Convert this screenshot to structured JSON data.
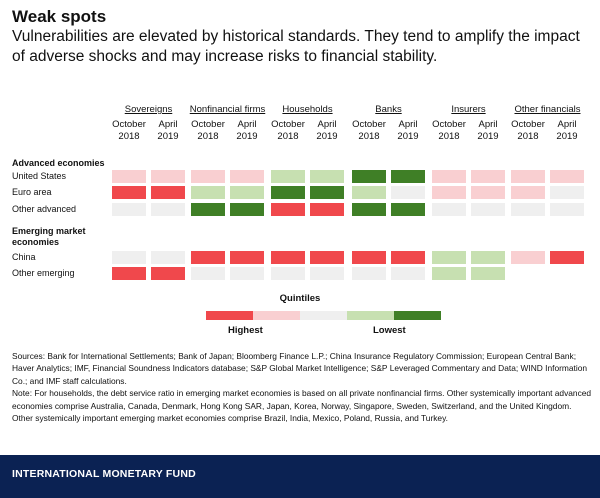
{
  "title": "Weak spots",
  "subtitle": "Vulnerabilities are elevated by historical standards. They tend to amplify the impact of adverse shocks and may increase risks to financial stability.",
  "chart_data": {
    "type": "heatmap",
    "sectors": [
      "Sovereigns",
      "Nonfinancial firms",
      "Households",
      "Banks",
      "Insurers",
      "Other financials"
    ],
    "periods": [
      {
        "line1": "October",
        "line2": "2018"
      },
      {
        "line1": "April",
        "line2": "2019"
      }
    ],
    "row_groups": [
      {
        "label": "Advanced economies",
        "rows": [
          "United States",
          "Euro area",
          "Other advanced"
        ]
      },
      {
        "label": "Emerging market economies",
        "rows": [
          "China",
          "Other emerging"
        ]
      }
    ],
    "scale": "quintile 1 = highest vulnerability ... 5 = lowest vulnerability; null = not available",
    "values": {
      "United States": [
        [
          2,
          2
        ],
        [
          2,
          2
        ],
        [
          4,
          4
        ],
        [
          5,
          5
        ],
        [
          2,
          2
        ],
        [
          2,
          2
        ]
      ],
      "Euro area": [
        [
          1,
          1
        ],
        [
          4,
          4
        ],
        [
          5,
          5
        ],
        [
          4,
          3
        ],
        [
          2,
          2
        ],
        [
          2,
          3
        ]
      ],
      "Other advanced": [
        [
          3,
          3
        ],
        [
          5,
          5
        ],
        [
          1,
          1
        ],
        [
          5,
          5
        ],
        [
          3,
          3
        ],
        [
          3,
          3
        ]
      ],
      "China": [
        [
          3,
          3
        ],
        [
          1,
          1
        ],
        [
          1,
          1
        ],
        [
          1,
          1
        ],
        [
          4,
          4
        ],
        [
          2,
          1
        ]
      ],
      "Other emerging": [
        [
          1,
          1
        ],
        [
          3,
          3
        ],
        [
          3,
          3
        ],
        [
          3,
          3
        ],
        [
          4,
          4
        ],
        [
          null,
          null
        ]
      ]
    },
    "legend": {
      "title": "Quintiles",
      "low_label": "Highest",
      "high_label": "Lowest",
      "colors": [
        "#f0484c",
        "#f9cfd1",
        "#efefef",
        "#c7e0b1",
        "#3f7f26"
      ]
    }
  },
  "notes": {
    "sources": "Sources: Bank for International Settlements; Bank of Japan; Bloomberg Finance L.P.; China Insurance Regulatory Commission; European Central Bank; Haver Analytics; IMF, Financial Soundness Indicators database; S&P Global Market Intelligence; S&P Leveraged Commentary and Data; WIND Information Co.; and IMF staff calculations.",
    "note": "Note: For households, the debt service ratio in emerging market economies is based on all private nonfinancial firms. Other systemically important advanced economies comprise Australia, Canada, Denmark, Hong Kong SAR, Japan, Korea, Norway, Singapore, Sweden, Switzerland, and the United Kingdom. Other systemically important emerging market economies comprise Brazil, India, Mexico, Poland, Russia, and Turkey."
  },
  "footer": "INTERNATIONAL MONETARY FUND"
}
